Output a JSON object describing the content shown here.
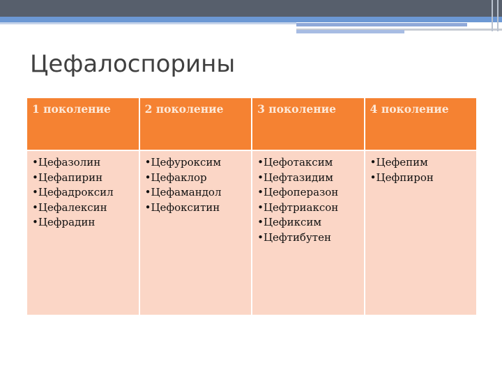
{
  "title": "Цефалоспорины",
  "columns": [
    {
      "header": "1 поколение",
      "items": [
        "•Цефазолин",
        "•Цефапирин",
        "•Цефадроксил",
        "•Цефалексин",
        "•Цефрадин"
      ]
    },
    {
      "header": "2 поколение",
      "items": [
        "•Цефуроксим",
        "•Цефаклор",
        "•Цефамандол",
        "•Цефокситин"
      ]
    },
    {
      "header": "3 поколение",
      "items": [
        "•Цефотаксим",
        "•Цефтазидим",
        "•Цефоперазон",
        "•Цефтриаксон",
        "•Цефиксим",
        "•Цефтибутен"
      ]
    },
    {
      "header": "4 поколение",
      "items": [
        "•Цефепим",
        "•Цефпирон"
      ]
    }
  ],
  "colors": {
    "header_bg": "#f58232",
    "body_bg": "#fbd6c6",
    "top_bar": "#575f6c",
    "accent_bar": "#6c98d4"
  }
}
